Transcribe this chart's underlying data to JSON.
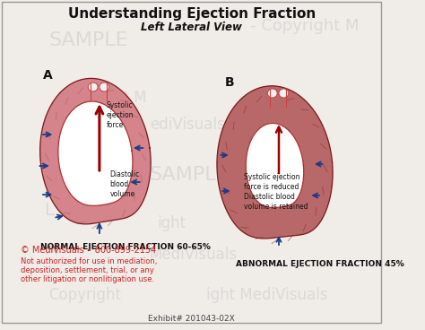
{
  "title": "Understanding Ejection Fraction",
  "subtitle": "Left Lateral View",
  "label_a": "A",
  "label_b": "B",
  "normal_label": "NORMAL EJECTION FRACTION 60-65%",
  "abnormal_label": "ABNORMAL EJECTION FRACTION 45%",
  "copyright_line1": "© MediVisuals • 800-899-2154",
  "copyright_line2": "Not authorized for use in mediation,",
  "copyright_line3": "deposition, settlement, trial, or any",
  "copyright_line4": "other litigation or nonlitigation use.",
  "exhibit_label": "Exhibit# 201043-02X",
  "annotation_a1": "Systolic\nejection\nforce",
  "annotation_a2": "Diastolic\nblood\nvolume",
  "annotation_b1": "Systolic ejection\nforce is reduced\nDiastolic blood\nvolume is retained",
  "bg_color": "#f0ece8",
  "heart_outer_color_a": "#d4848a",
  "heart_outer_color_b": "#b86868",
  "heart_wall_light": "#e8aaaa",
  "heart_wall_dark": "#c07070",
  "lumen_color": "#ffffff",
  "inner_wall_color": "#cc4444",
  "arrow_color_red": "#990000",
  "arrow_color_blue": "#1a3a8a",
  "watermark_color": "#bbbbbb",
  "title_color": "#111111",
  "red_text_color": "#cc2222",
  "border_color": "#999999",
  "exhibit_color": "#444444"
}
